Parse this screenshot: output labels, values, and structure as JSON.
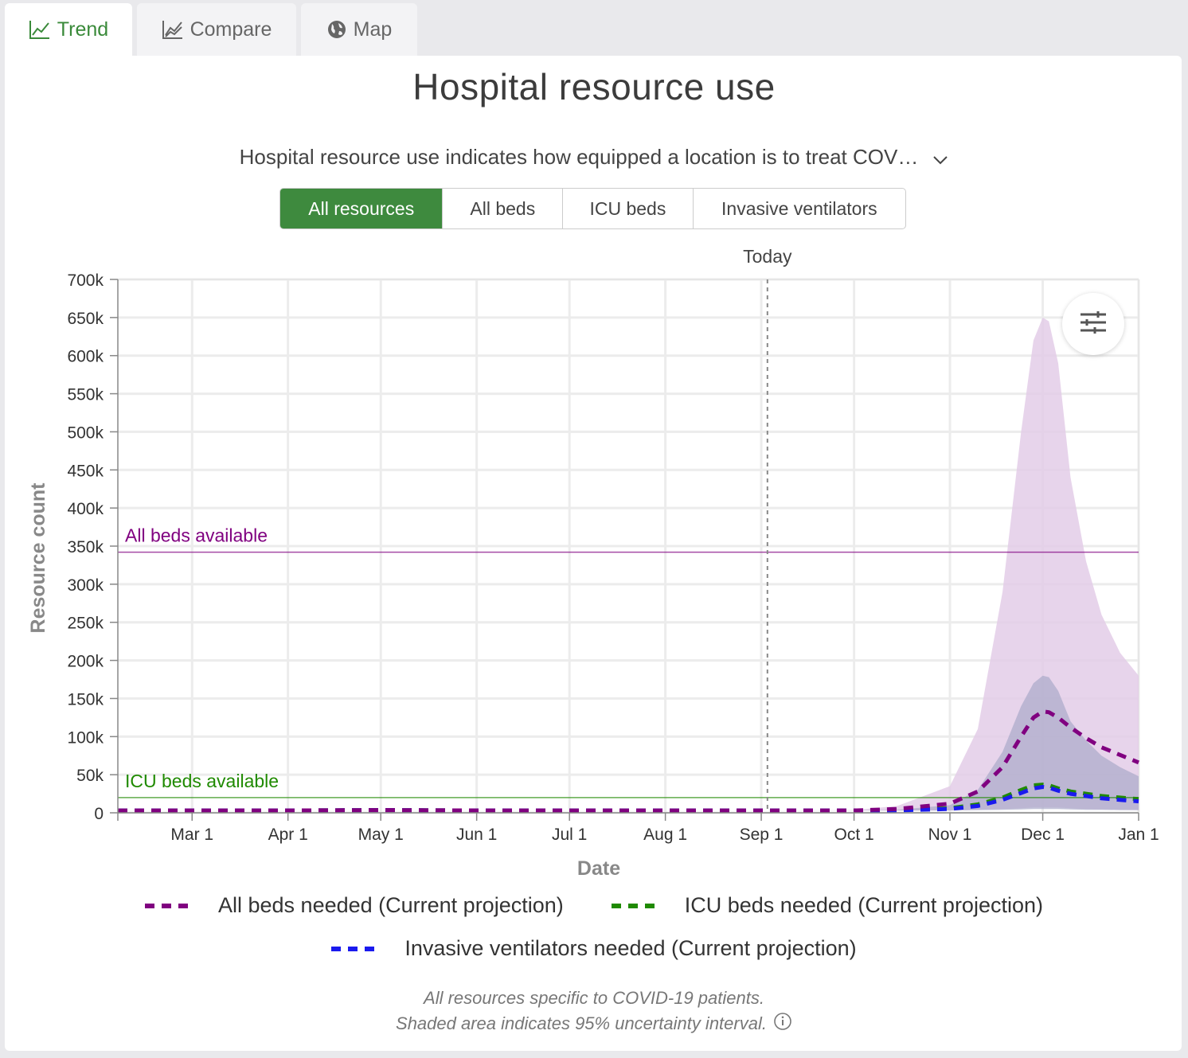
{
  "tabs": [
    {
      "label": "Trend",
      "icon": "trend-line-icon",
      "active": true
    },
    {
      "label": "Compare",
      "icon": "compare-chart-icon",
      "active": false
    },
    {
      "label": "Map",
      "icon": "globe-icon",
      "active": false
    }
  ],
  "title": "Hospital resource use",
  "description": "Hospital resource use indicates how equipped a location is to treat COV…",
  "resource_filter": {
    "options": [
      "All resources",
      "All beds",
      "ICU beds",
      "Invasive ventilators"
    ],
    "selected": "All resources"
  },
  "settings_icon": "sliders-icon",
  "colors": {
    "accent_green": "#3e8a3e",
    "all_beds": "#800080",
    "icu_beds": "#1f8a00",
    "ventilators": "#1a1aee",
    "uncertainty_all_beds": "#e3cce8",
    "uncertainty_icu": "#a9a9c9"
  },
  "chart_data": {
    "type": "line",
    "xlabel": "Date",
    "ylabel": "Resource count",
    "x_ticks": [
      "Mar 1",
      "Apr 1",
      "May 1",
      "Jun 1",
      "Jul 1",
      "Aug 1",
      "Sep 1",
      "Oct 1",
      "Nov 1",
      "Dec 1",
      "Jan 1"
    ],
    "x_tick_dates": [
      "2020-03-01",
      "2020-04-01",
      "2020-05-01",
      "2020-06-01",
      "2020-07-01",
      "2020-08-01",
      "2020-09-01",
      "2020-10-01",
      "2020-11-01",
      "2020-12-01",
      "2021-01-01"
    ],
    "x_range": [
      "2020-02-06",
      "2021-01-01"
    ],
    "y_ticks": [
      0,
      50000,
      100000,
      150000,
      200000,
      250000,
      300000,
      350000,
      400000,
      450000,
      500000,
      550000,
      600000,
      650000,
      700000
    ],
    "y_tick_labels": [
      "0",
      "50k",
      "100k",
      "150k",
      "200k",
      "250k",
      "300k",
      "350k",
      "400k",
      "450k",
      "500k",
      "550k",
      "600k",
      "650k",
      "700k"
    ],
    "ylim": [
      0,
      700000
    ],
    "grid": true,
    "today": {
      "label": "Today",
      "date": "2020-09-03"
    },
    "reference_lines": [
      {
        "label": "All beds available",
        "value": 342000,
        "color": "#800080"
      },
      {
        "label": "ICU beds available",
        "value": 20000,
        "color": "#1f8a00"
      }
    ],
    "x_dates": [
      "2020-02-06",
      "2020-03-01",
      "2020-04-01",
      "2020-05-01",
      "2020-06-01",
      "2020-07-01",
      "2020-08-01",
      "2020-09-01",
      "2020-10-01",
      "2020-10-15",
      "2020-11-01",
      "2020-11-10",
      "2020-11-18",
      "2020-11-24",
      "2020-11-28",
      "2020-12-01",
      "2020-12-03",
      "2020-12-06",
      "2020-12-10",
      "2020-12-15",
      "2020-12-20",
      "2020-12-26",
      "2021-01-01"
    ],
    "series": [
      {
        "name": "All beds needed (Current projection)",
        "color": "#800080",
        "values": [
          3000,
          3000,
          3000,
          3500,
          3000,
          3000,
          3000,
          3000,
          3000,
          5000,
          12000,
          28000,
          60000,
          100000,
          125000,
          133000,
          132000,
          125000,
          112000,
          98000,
          86000,
          76000,
          66000
        ],
        "upper": [
          3000,
          3000,
          3000,
          3500,
          3000,
          3000,
          3000,
          3000,
          3500,
          9000,
          35000,
          110000,
          290000,
          500000,
          620000,
          650000,
          645000,
          590000,
          440000,
          330000,
          260000,
          210000,
          180000
        ],
        "lower": [
          3000,
          3000,
          3000,
          3500,
          3000,
          3000,
          3000,
          3000,
          3000,
          3000,
          3000,
          4000,
          5000,
          6000,
          7000,
          7000,
          7000,
          7000,
          6000,
          5000,
          4500,
          4000,
          3500
        ]
      },
      {
        "name": "ICU beds needed (Current projection)",
        "color": "#1f8a00",
        "values": [
          3000,
          3000,
          3000,
          3500,
          3000,
          3000,
          3000,
          3000,
          3000,
          3500,
          6000,
          11000,
          20000,
          30000,
          36000,
          37000,
          36000,
          32000,
          28000,
          25000,
          22000,
          20000,
          18000
        ]
      },
      {
        "name": "Invasive ventilators needed (Current projection)",
        "color": "#1a1aee",
        "values": [
          3000,
          3000,
          3000,
          3500,
          3000,
          3000,
          3000,
          3000,
          3000,
          3200,
          5000,
          9000,
          17000,
          26000,
          32000,
          34000,
          33000,
          29000,
          25000,
          22000,
          19000,
          17000,
          15000
        ]
      }
    ],
    "icu_uncertainty": {
      "upper": [
        3000,
        3000,
        3000,
        3500,
        3000,
        3000,
        3000,
        3000,
        3000,
        4000,
        10000,
        30000,
        80000,
        140000,
        170000,
        180000,
        178000,
        160000,
        120000,
        95000,
        75000,
        60000,
        48000
      ],
      "lower": [
        3000,
        3000,
        3000,
        3500,
        3000,
        3000,
        3000,
        3000,
        3000,
        3000,
        3000,
        3500,
        4000,
        4500,
        5000,
        5000,
        5000,
        5000,
        4500,
        4000,
        4000,
        3500,
        3500
      ]
    }
  },
  "legend": [
    {
      "label": "All beds needed (Current projection)",
      "color": "#800080"
    },
    {
      "label": "ICU beds needed (Current projection)",
      "color": "#1f8a00"
    },
    {
      "label": "Invasive ventilators needed (Current projection)",
      "color": "#1a1aee"
    }
  ],
  "footnote": {
    "line1": "All resources specific to COVID-19 patients.",
    "line2": "Shaded area indicates 95% uncertainty interval."
  }
}
